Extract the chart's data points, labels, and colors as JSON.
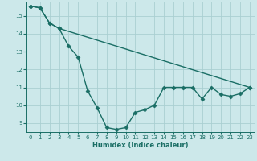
{
  "xlabel": "Humidex (Indice chaleur)",
  "ylabel": "",
  "background_color": "#cce8ea",
  "grid_color": "#aacfd2",
  "line_color": "#1a6e65",
  "xlim": [
    -0.5,
    23.5
  ],
  "ylim": [
    8.5,
    15.8
  ],
  "xticks": [
    0,
    1,
    2,
    3,
    4,
    5,
    6,
    7,
    8,
    9,
    10,
    11,
    12,
    13,
    14,
    15,
    16,
    17,
    18,
    19,
    20,
    21,
    22,
    23
  ],
  "yticks": [
    9,
    10,
    11,
    12,
    13,
    14,
    15
  ],
  "series1_x": [
    0,
    1,
    2,
    3,
    4,
    5,
    6,
    7,
    8,
    9,
    10,
    11,
    12,
    13,
    14,
    15,
    16,
    17,
    18,
    19,
    20,
    21,
    22,
    23
  ],
  "series1_y": [
    15.55,
    15.45,
    14.6,
    14.3,
    13.3,
    12.7,
    10.8,
    9.85,
    8.75,
    8.65,
    8.75,
    9.6,
    9.75,
    10.0,
    11.0,
    11.0,
    11.0,
    11.0,
    10.35,
    11.0,
    10.6,
    10.5,
    10.65,
    11.0
  ],
  "series2_x": [
    0,
    1,
    2,
    3,
    23
  ],
  "series2_y": [
    15.55,
    15.45,
    14.6,
    14.3,
    11.0
  ],
  "marker": "D",
  "markersize": 2.5,
  "linewidth": 1.0
}
